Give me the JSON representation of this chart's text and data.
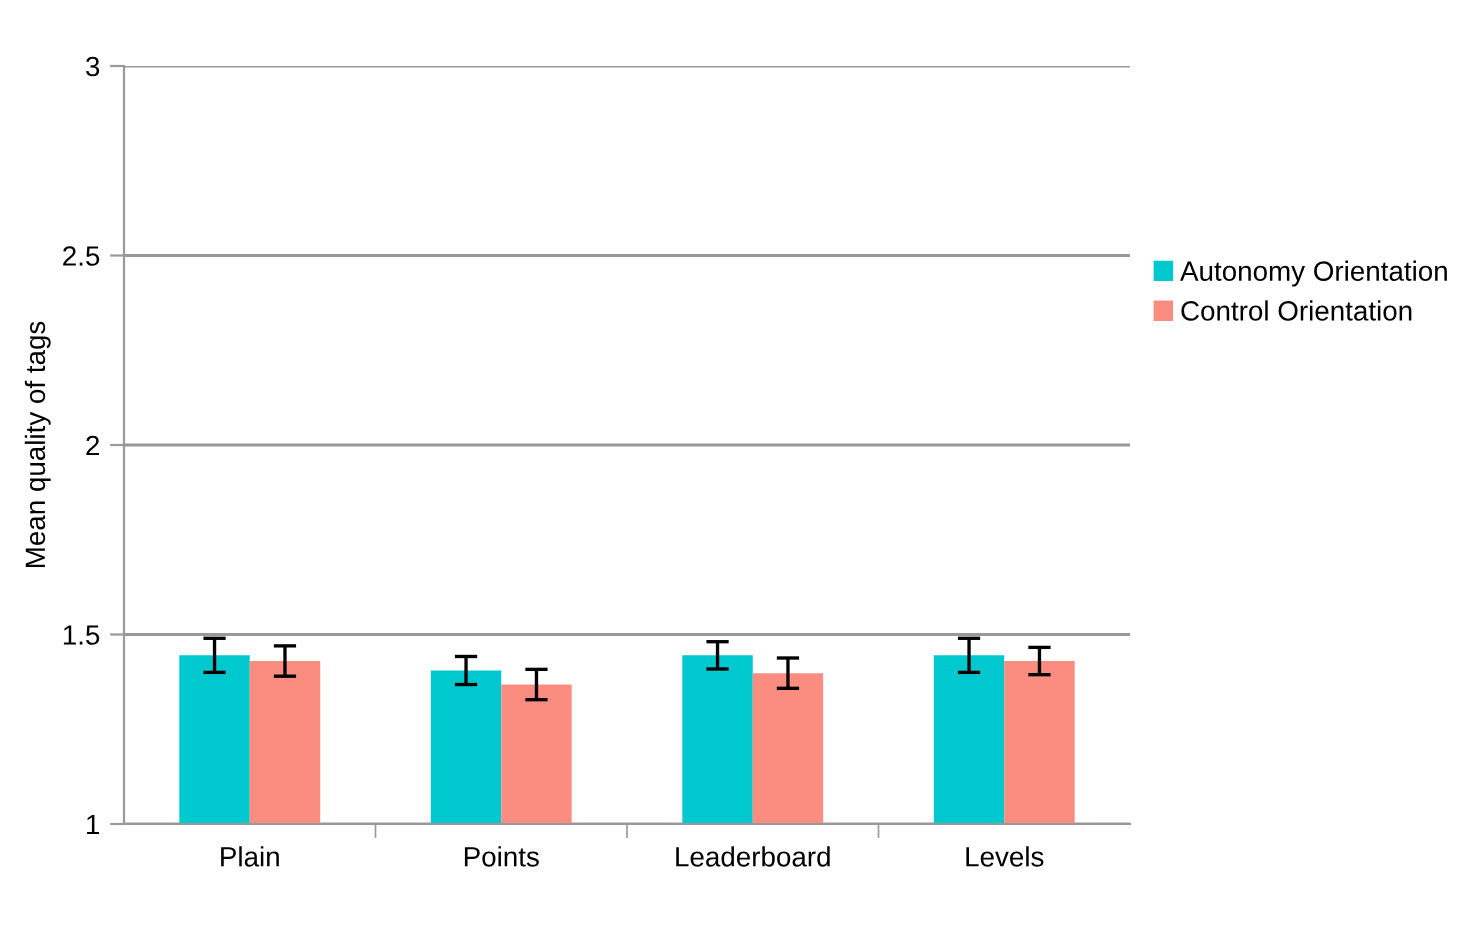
{
  "chart_data": {
    "type": "bar",
    "ylabel": "Mean quality of tags",
    "categories": [
      "Plain",
      "Points",
      "Leaderboard",
      "Levels"
    ],
    "series": [
      {
        "name": "Autonomy Orientation",
        "color": "#00c8cf",
        "values": [
          1.445,
          1.405,
          1.445,
          1.445
        ],
        "errors": [
          0.045,
          0.037,
          0.036,
          0.045
        ]
      },
      {
        "name": "Control Orientation",
        "color": "#fa8c80",
        "values": [
          1.43,
          1.368,
          1.398,
          1.43
        ],
        "errors": [
          0.04,
          0.04,
          0.04,
          0.036
        ]
      }
    ],
    "ylim": [
      1,
      3
    ],
    "yticks": [
      1,
      1.5,
      2,
      2.5,
      3
    ],
    "grid": "y",
    "legend": "right"
  }
}
